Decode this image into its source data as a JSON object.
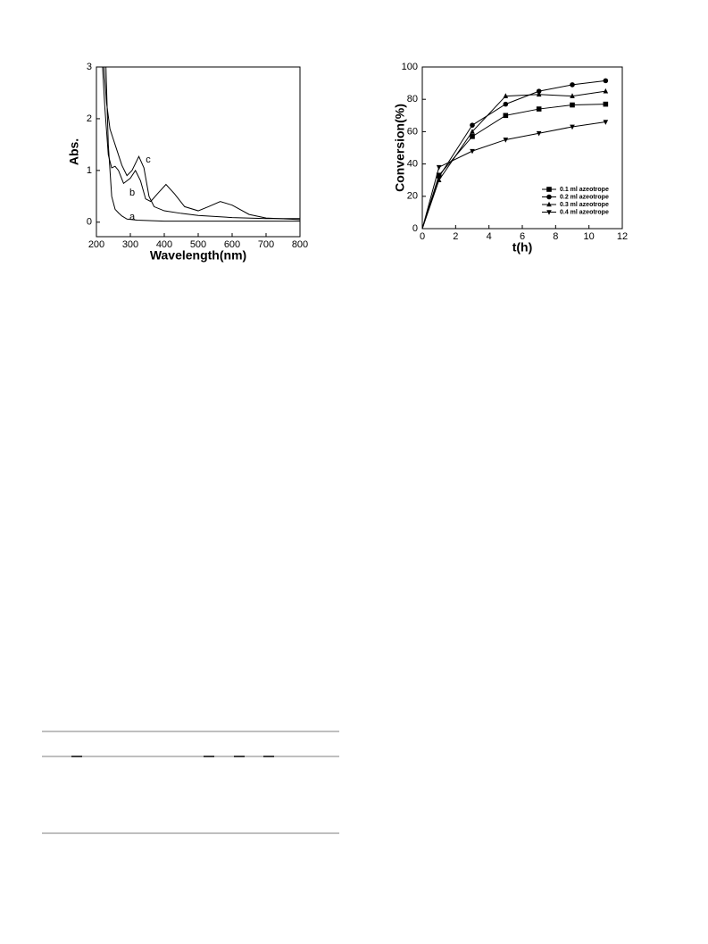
{
  "chart_data": [
    {
      "type": "line",
      "xlabel": "Wavelength(nm)",
      "ylabel": "Abs.",
      "xlim": [
        200,
        800
      ],
      "xticks": [
        200,
        300,
        400,
        500,
        600,
        700,
        800
      ],
      "ylim": [
        -0.28,
        3
      ],
      "yticks": [
        0,
        1,
        2,
        3
      ],
      "series": [
        {
          "name": "a",
          "color": "#000000",
          "x": [
            228,
            235,
            245,
            255,
            265,
            275,
            290,
            320,
            400,
            500,
            600,
            800
          ],
          "values": [
            3,
            1.5,
            0.5,
            0.25,
            0.18,
            0.12,
            0.06,
            0.04,
            0.02,
            0.02,
            0.02,
            0.02
          ]
        },
        {
          "name": "b",
          "color": "#000000",
          "x": [
            218,
            225,
            235,
            245,
            255,
            265,
            280,
            300,
            315,
            330,
            345,
            360,
            380,
            405,
            430,
            460,
            500,
            530,
            565,
            600,
            650,
            700,
            800
          ],
          "values": [
            3,
            2.2,
            1.3,
            1.05,
            1.08,
            1.0,
            0.75,
            0.85,
            1.0,
            0.8,
            0.45,
            0.4,
            0.55,
            0.73,
            0.55,
            0.3,
            0.22,
            0.3,
            0.4,
            0.33,
            0.15,
            0.08,
            0.05
          ]
        },
        {
          "name": "c",
          "color": "#000000",
          "x": [
            222,
            230,
            240,
            250,
            260,
            275,
            290,
            305,
            325,
            340,
            355,
            370,
            400,
            450,
            500,
            600,
            700,
            800
          ],
          "values": [
            3,
            2.3,
            1.8,
            1.6,
            1.4,
            1.1,
            0.9,
            1.0,
            1.27,
            1.05,
            0.5,
            0.3,
            0.22,
            0.17,
            0.13,
            0.09,
            0.07,
            0.07
          ]
        }
      ]
    },
    {
      "type": "line",
      "xlabel": "t(h)",
      "ylabel": "Conversion(%)",
      "xlim": [
        0,
        12
      ],
      "xticks": [
        0,
        2,
        4,
        6,
        8,
        10,
        12
      ],
      "ylim": [
        0,
        100
      ],
      "yticks": [
        0,
        20,
        40,
        60,
        80,
        100
      ],
      "legend": "lower right",
      "series": [
        {
          "name": "0.1 ml  azeotrope",
          "color": "#000000",
          "marker": "square",
          "x": [
            0,
            1,
            3,
            5,
            7,
            9,
            11
          ],
          "values": [
            0,
            33,
            57,
            70,
            74,
            76.5,
            77
          ]
        },
        {
          "name": "0.2 ml  azeotrope",
          "color": "#000000",
          "marker": "circle",
          "x": [
            0,
            1,
            3,
            5,
            7,
            9,
            11
          ],
          "values": [
            0,
            32,
            64,
            77,
            85,
            89,
            91.5
          ]
        },
        {
          "name": "0.3 ml  azeotrope",
          "color": "#000000",
          "marker": "triangle-up",
          "x": [
            0,
            1,
            3,
            5,
            7,
            9,
            11
          ],
          "values": [
            0,
            30,
            60,
            82,
            83,
            82,
            85
          ]
        },
        {
          "name": "0.4 ml  azeotrope",
          "color": "#000000",
          "marker": "triangle-down",
          "x": [
            0,
            1,
            3,
            5,
            7,
            9,
            11
          ],
          "values": [
            0,
            38,
            48,
            55,
            59,
            63,
            66
          ]
        }
      ]
    }
  ]
}
